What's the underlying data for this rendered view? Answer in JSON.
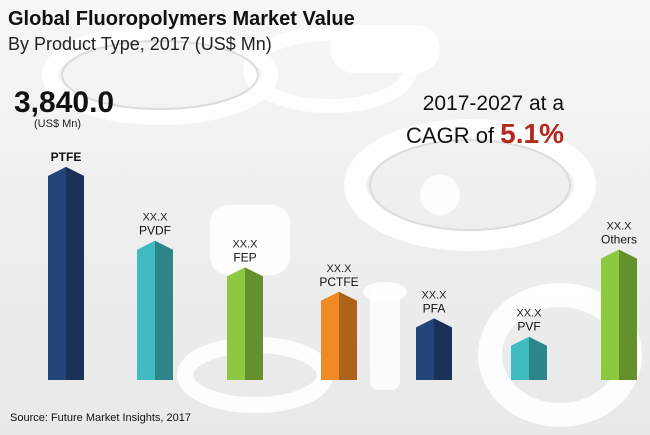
{
  "header": {
    "title": "Global Fluoropolymers Market Value",
    "subtitle": "By Product Type, 2017 (US$ Mn)"
  },
  "highlight": {
    "value": "3,840.0",
    "unit": "(US$ Mn)"
  },
  "cagr": {
    "line1": "2017-2027 at a",
    "prefix": "CAGR of ",
    "value": "5.1%"
  },
  "source": "Source: Future Market Insights, 2017",
  "colors": {
    "ptfe": "#24457a",
    "pvdf": "#3fbcc0",
    "fep": "#8cc840",
    "pctfe": "#f08a24",
    "pfa": "#24457a",
    "pvf": "#3fbcc0",
    "others": "#8cc840",
    "accent": "#b22a1f"
  },
  "chart_data": {
    "type": "bar",
    "title": "Global Fluoropolymers Market Value",
    "subtitle": "By Product Type, 2017 (US$ Mn)",
    "categories": [
      "PTFE",
      "PVDF",
      "FEP",
      "PCTFE",
      "PFA",
      "PVF",
      "Others"
    ],
    "value_labels": [
      "",
      "XX.X",
      "XX.X",
      "XX.X",
      "XX.X",
      "XX.X",
      "XX.X"
    ],
    "values": [
      3840.0,
      2510,
      2030,
      1590,
      1110,
      780,
      2350
    ],
    "series_colors": [
      "#24457a",
      "#3fbcc0",
      "#8cc840",
      "#f08a24",
      "#24457a",
      "#3fbcc0",
      "#8cc840"
    ],
    "ylim": [
      0,
      4000
    ],
    "grid": false,
    "legend": "none"
  }
}
